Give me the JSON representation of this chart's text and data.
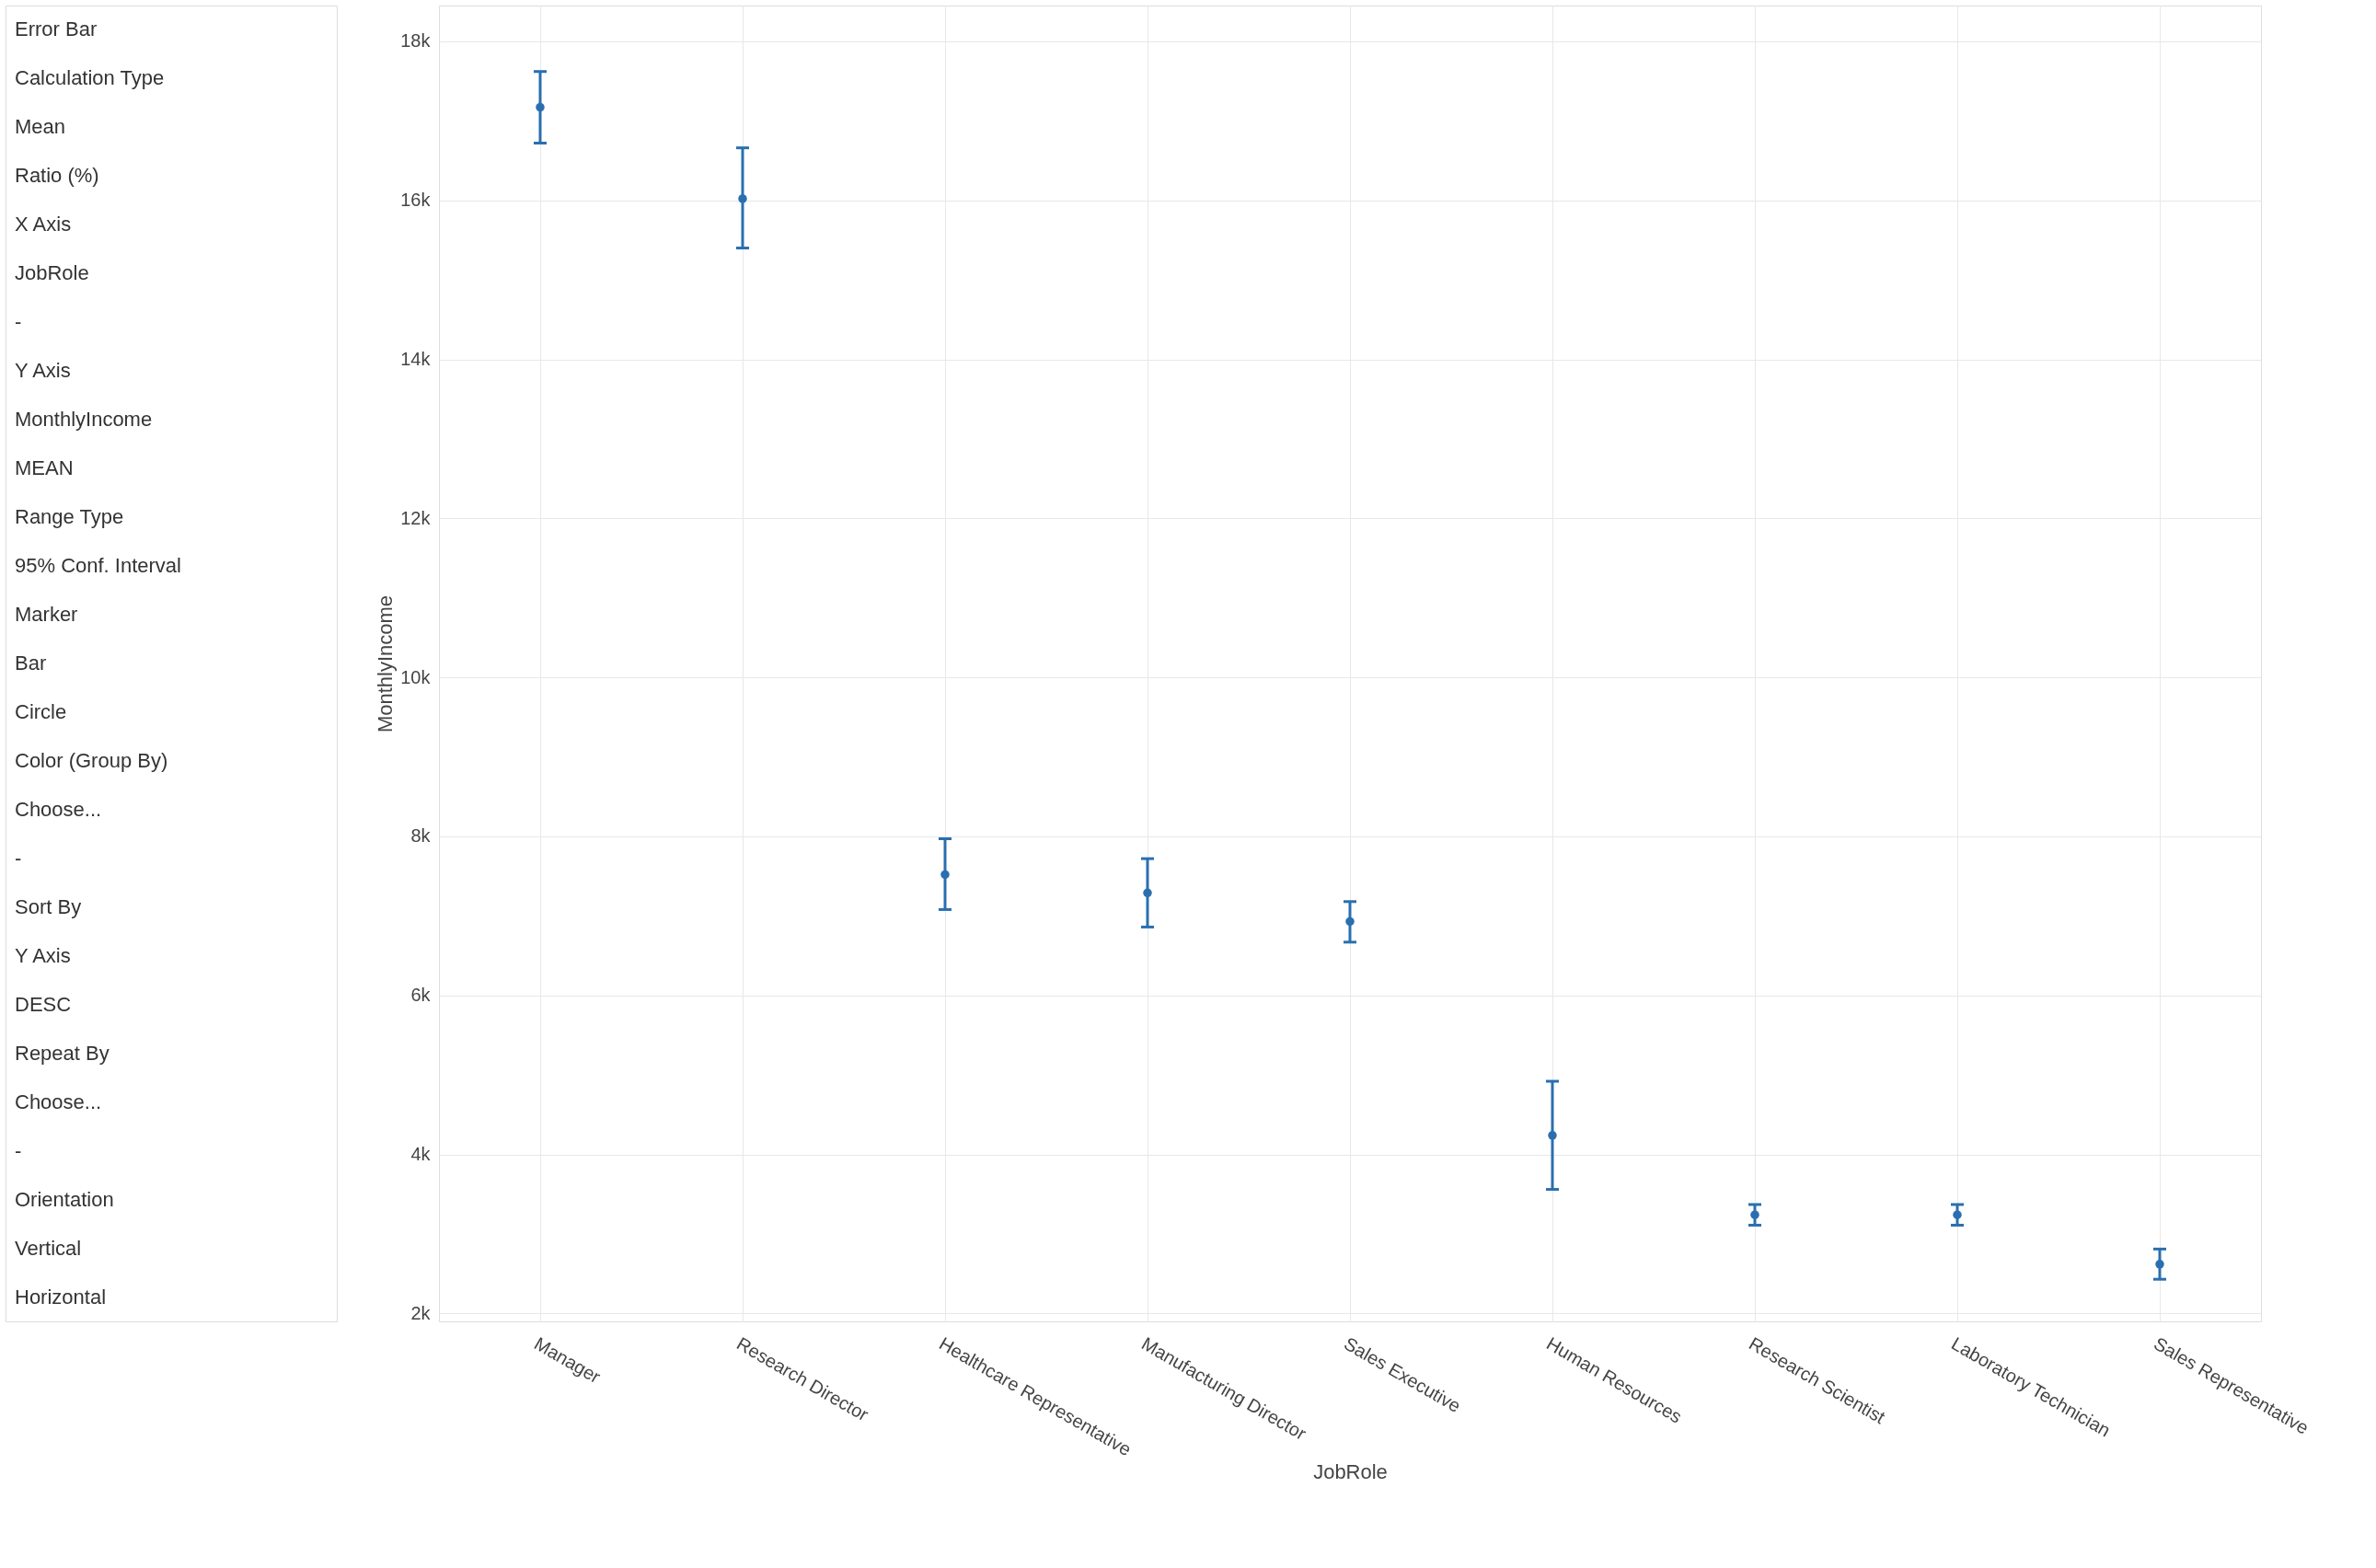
{
  "chart_data": {
    "type": "scatter",
    "xlabel": "JobRole",
    "ylabel": "MonthlyIncome",
    "categories": [
      "Manager",
      "Research Director",
      "Healthcare Representative",
      "Manufacturing Director",
      "Sales Executive",
      "Human Resources",
      "Research Scientist",
      "Laboratory Technician",
      "Sales Representative"
    ],
    "series": [
      {
        "color": "#2a6fb0",
        "values": [
          17170,
          16020,
          7520,
          7290,
          6930,
          4240,
          3240,
          3240,
          2620
        ],
        "errors": [
          [
            16720,
            17620
          ],
          [
            15400,
            16660
          ],
          [
            7080,
            7970
          ],
          [
            6860,
            7720
          ],
          [
            6670,
            7180
          ],
          [
            3560,
            4920
          ],
          [
            3110,
            3370
          ],
          [
            3110,
            3370
          ],
          [
            2430,
            2810
          ]
        ]
      }
    ],
    "ylim": [
      1900,
      18450
    ],
    "yticks": [
      {
        "value": 2000,
        "label": "2k"
      },
      {
        "value": 4000,
        "label": "4k"
      },
      {
        "value": 6000,
        "label": "6k"
      },
      {
        "value": 8000,
        "label": "8k"
      },
      {
        "value": 10000,
        "label": "10k"
      },
      {
        "value": 12000,
        "label": "12k"
      },
      {
        "value": 14000,
        "label": "14k"
      },
      {
        "value": 16000,
        "label": "16k"
      },
      {
        "value": 18000,
        "label": "18k"
      }
    ],
    "grid": true,
    "marker": "circle",
    "legend": false,
    "annotations": [
      "Error Bar",
      "Calculation Type",
      "Mean",
      "Ratio (%)",
      "X Axis",
      "JobRole",
      "-",
      "Y Axis",
      "MonthlyIncome",
      "MEAN",
      "Range Type",
      "95% Conf. Interval",
      "Marker",
      "Bar",
      "Circle",
      "Color (Group By)",
      "Choose...",
      "-",
      "Sort By",
      "Y Axis",
      "DESC",
      "Repeat By",
      "Choose...",
      "-",
      "Orientation",
      "Vertical",
      "Horizontal"
    ]
  }
}
